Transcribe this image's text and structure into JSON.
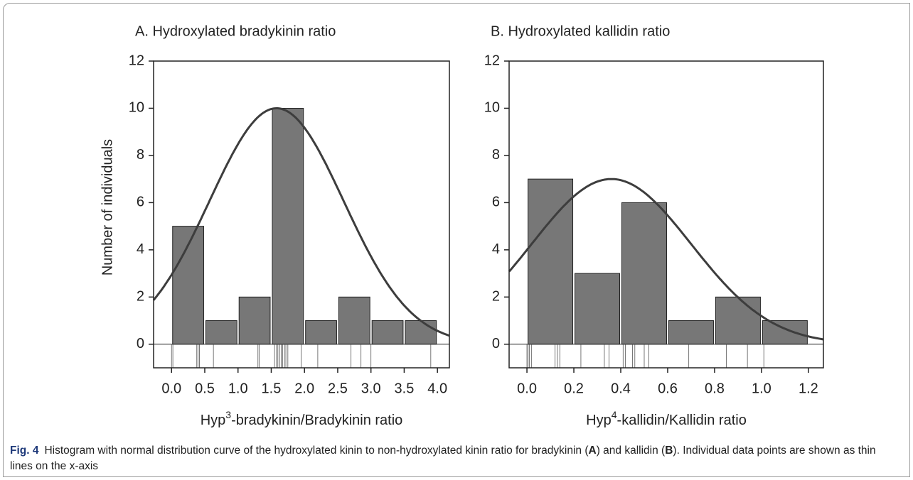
{
  "chart_data": [
    {
      "type": "histogram",
      "title": "A. Hydroxylated bradykinin ratio",
      "xlabel": [
        "Hyp",
        "3",
        "-bradykinin/Bradykinin ratio"
      ],
      "ylabel": "Number of individuals",
      "bins": [
        0,
        0.5,
        1,
        1.5,
        2,
        2.5,
        3,
        3.5,
        4
      ],
      "values": [
        5,
        1,
        2,
        10,
        1,
        2,
        1,
        1
      ],
      "color": "#777777",
      "curve_color": "#3d3d3d",
      "rug": [
        0.0,
        0.02,
        0.38,
        0.4,
        0.42,
        0.63,
        1.3,
        1.32,
        1.55,
        1.58,
        1.6,
        1.63,
        1.65,
        1.67,
        1.7,
        1.72,
        1.75,
        1.95,
        2.2,
        2.7,
        2.85,
        3.0,
        3.9
      ],
      "fit": {
        "mean": 1.58,
        "sd": 1.01,
        "height": 10
      },
      "xlim": [
        -0.27,
        4.18
      ],
      "ylim": [
        -1,
        12
      ],
      "xticks": [
        {
          "value": 0,
          "label": "0.0"
        },
        0.5,
        {
          "value": 1,
          "label": "1.0"
        },
        1.5,
        {
          "value": 2,
          "label": "2.0"
        },
        2.5,
        {
          "value": 3,
          "label": "3.0"
        },
        3.5,
        {
          "value": 4,
          "label": "4.0"
        }
      ],
      "yticks": [
        0,
        2,
        4,
        6,
        8,
        10,
        12
      ]
    },
    {
      "type": "histogram",
      "title": "B. Hydroxylated kallidin ratio",
      "xlabel": [
        "Hyp",
        "4",
        "-kallidin/Kallidin ratio"
      ],
      "bins": [
        0,
        0.2,
        0.4,
        0.6,
        0.8,
        1.0,
        1.2
      ],
      "values": [
        7,
        3,
        6,
        1,
        2,
        1
      ],
      "color": "#777777",
      "curve_color": "#3d3d3d",
      "rug": [
        0.0,
        0.005,
        0.01,
        0.02,
        0.12,
        0.13,
        0.14,
        0.23,
        0.33,
        0.35,
        0.41,
        0.42,
        0.45,
        0.46,
        0.5,
        0.52,
        0.69,
        0.85,
        0.94,
        1.01
      ],
      "fit": {
        "mean": 0.36,
        "sd": 0.34,
        "height": 7
      },
      "xlim": [
        -0.076,
        1.264
      ],
      "ylim": [
        -1,
        12
      ],
      "xticks": [
        {
          "value": 0,
          "label": "0.0"
        },
        0.2,
        0.4,
        0.6,
        0.8,
        {
          "value": 1,
          "label": "1.0"
        },
        1.2
      ],
      "yticks": [
        0,
        2,
        4,
        6,
        8,
        10,
        12
      ]
    }
  ],
  "caption": {
    "label": "Fig. 4",
    "parts": [
      "Histogram with normal distribution curve of the hydroxylated kinin to non-hydroxylated kinin ratio for bradykinin (",
      "A",
      ") and kallidin (",
      "B",
      "). Individual data points are shown as thin lines on the x-axis"
    ]
  }
}
